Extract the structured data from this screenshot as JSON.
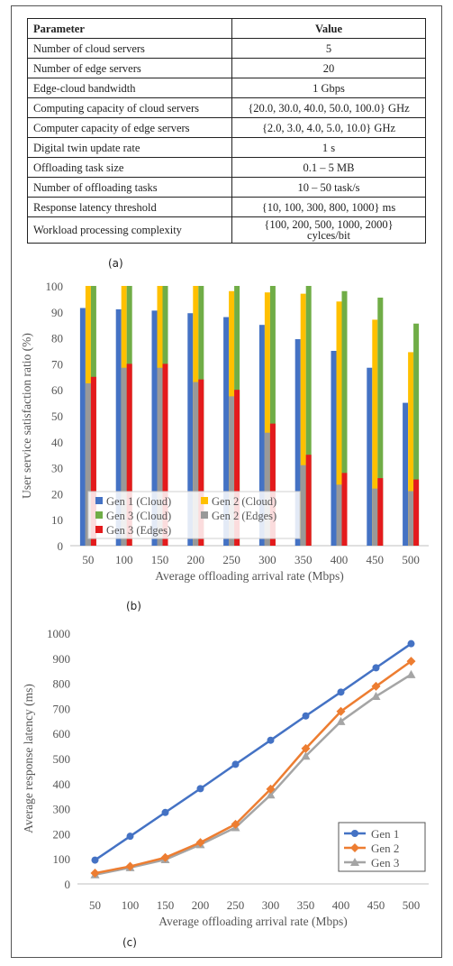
{
  "table": {
    "header": [
      "Parameter",
      "Value"
    ],
    "rows": [
      [
        "Number of cloud servers",
        "5"
      ],
      [
        "Number of edge servers",
        "20"
      ],
      [
        "Edge-cloud bandwidth",
        "1 Gbps"
      ],
      [
        "Computing capacity of cloud servers",
        "{20.0, 30.0, 40.0, 50.0, 100.0} GHz"
      ],
      [
        "Computer capacity of edge servers",
        "{2.0, 3.0, 4.0, 5.0, 10.0} GHz"
      ],
      [
        "Digital twin update rate",
        "1 s"
      ],
      [
        "Offloading task size",
        "0.1 – 5 MB"
      ],
      [
        "Number of offloading tasks",
        "10 – 50 task/s"
      ],
      [
        "Response latency threshold",
        "{10, 100, 300, 800, 1000} ms"
      ],
      [
        "Workload processing complexity",
        "{100, 200, 500, 1000, 2000}",
        "cylces/bit"
      ]
    ]
  },
  "labels": {
    "a": "(a)",
    "b": "(b)",
    "c": "(c)"
  },
  "colors": {
    "gen1_cloud": "#4472c4",
    "gen2_cloud": "#ffc000",
    "gen3_cloud": "#70ad47",
    "gen2_edges": "#999999",
    "gen3_edges": "#e41a1c",
    "line_gen2": "#ed7d31",
    "line_gen3": "#a5a5a5"
  },
  "chart_data": [
    {
      "type": "bar",
      "xlabel": "Average offloading arrival rate (Mbps)",
      "ylabel": "User service satisfaction ratio (%)",
      "ylim": [
        0,
        100
      ],
      "yticks": [
        0,
        10,
        20,
        30,
        40,
        50,
        60,
        70,
        80,
        90,
        100
      ],
      "categories": [
        "50",
        "100",
        "150",
        "200",
        "250",
        "300",
        "350",
        "400",
        "450",
        "500"
      ],
      "legend_position": "bottom-left",
      "series": [
        {
          "name": "Gen 1 (Cloud)",
          "values": [
            91.5,
            91,
            90.5,
            89.5,
            88,
            85,
            79.5,
            75,
            68.5,
            55
          ]
        },
        {
          "name": "Gen 2 (Cloud)",
          "values": [
            100,
            100,
            100,
            100,
            98,
            97.5,
            97,
            94,
            87,
            74.5
          ]
        },
        {
          "name": "Gen 3 (Cloud)",
          "values": [
            100,
            100,
            100,
            100,
            100,
            100,
            100,
            98,
            95.5,
            85.5
          ]
        },
        {
          "name": "Gen 2 (Edges)",
          "values": [
            62.5,
            68.5,
            68.5,
            63,
            57.5,
            43.5,
            31,
            23.5,
            22,
            21
          ]
        },
        {
          "name": "Gen 3 (Edges)",
          "values": [
            65,
            70,
            70,
            64,
            60,
            47,
            35,
            28,
            26,
            25.5
          ]
        }
      ]
    },
    {
      "type": "line",
      "xlabel": "Average offloading arrival rate (Mbps)",
      "ylabel": "Average response latency (ms)",
      "ylim": [
        0,
        1000
      ],
      "yticks": [
        0,
        100,
        200,
        300,
        400,
        500,
        600,
        700,
        800,
        900,
        1000
      ],
      "categories": [
        "50",
        "100",
        "150",
        "200",
        "250",
        "300",
        "350",
        "400",
        "450",
        "500"
      ],
      "legend_position": "bottom-right",
      "series": [
        {
          "name": "Gen 1",
          "values": [
            95,
            190,
            285,
            380,
            477,
            573,
            670,
            765,
            862,
            958
          ]
        },
        {
          "name": "Gen 2",
          "values": [
            43,
            70,
            105,
            165,
            238,
            378,
            540,
            688,
            788,
            888
          ]
        },
        {
          "name": "Gen 3",
          "values": [
            37,
            65,
            97,
            157,
            225,
            355,
            510,
            648,
            748,
            835
          ]
        }
      ]
    }
  ]
}
